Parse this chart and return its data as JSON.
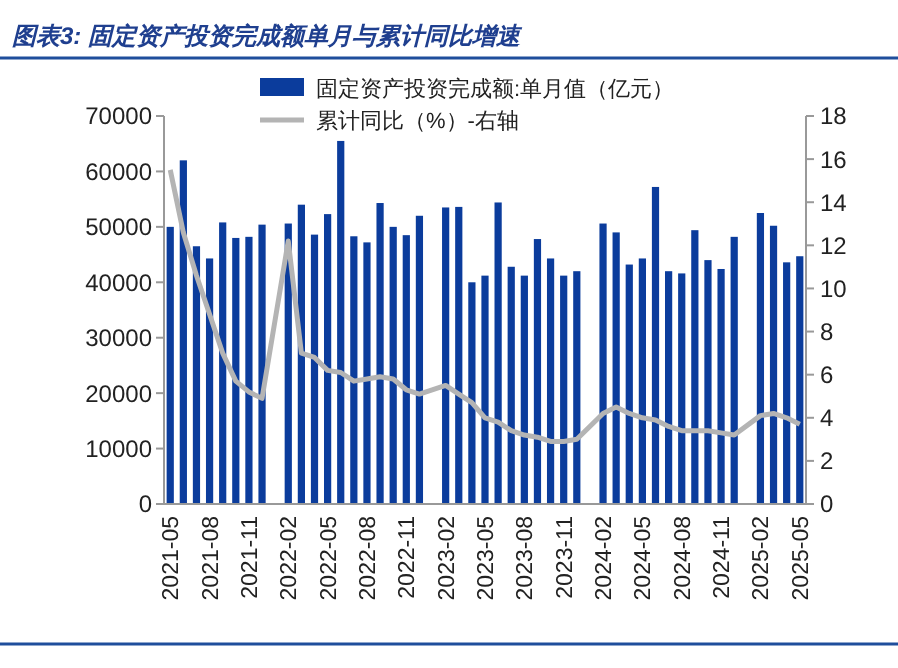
{
  "chart_data": {
    "type": "bar",
    "title": "图表3:  固定资产投资完成额单月与累计同比增速",
    "categories": [
      "2021-05",
      null,
      null,
      "2021-08",
      null,
      null,
      "2021-11",
      null,
      null,
      "2022-02",
      null,
      null,
      "2022-05",
      null,
      null,
      "2022-08",
      null,
      null,
      "2022-11",
      null,
      null,
      "2023-02",
      null,
      null,
      "2023-05",
      null,
      null,
      "2023-08",
      null,
      null,
      "2023-11",
      null,
      null,
      "2024-02",
      null,
      null,
      "2024-05",
      null,
      null,
      "2024-08",
      null,
      null,
      "2024-11",
      null,
      null,
      "2025-02",
      null,
      null,
      "2025-05"
    ],
    "series": [
      {
        "name": "固定资产投资完成额:单月值（亿元）",
        "color": "#0b3c9c",
        "values": [
          50000,
          62000,
          46500,
          44300,
          50800,
          48000,
          48200,
          50400,
          null,
          50600,
          54000,
          48600,
          52300,
          65500,
          48300,
          47200,
          54300,
          50000,
          48500,
          52000,
          null,
          53500,
          53600,
          40000,
          41200,
          54400,
          42800,
          41200,
          47800,
          44300,
          41200,
          42000,
          null,
          50600,
          49000,
          43200,
          44300,
          57200,
          42000,
          41600,
          49400,
          44000,
          42400,
          48200,
          null,
          52500,
          50200,
          43600,
          44700
        ]
      },
      {
        "name": "累计同比（%）-右轴",
        "type": "line",
        "axis": "y2",
        "color": "#b4b4b4",
        "values": [
          15.5,
          12.6,
          10.6,
          8.8,
          7.0,
          5.7,
          5.2,
          4.9,
          null,
          12.2,
          7.0,
          6.8,
          6.2,
          6.1,
          5.7,
          5.8,
          5.9,
          5.8,
          5.3,
          5.1,
          null,
          5.5,
          5.1,
          4.7,
          4.0,
          3.8,
          3.4,
          3.2,
          3.1,
          2.9,
          2.9,
          3.0,
          null,
          4.2,
          4.5,
          4.2,
          4.0,
          3.9,
          3.6,
          3.4,
          3.4,
          3.4,
          3.3,
          3.2,
          null,
          4.1,
          4.2,
          4.0,
          3.7
        ]
      }
    ],
    "ylim": [
      0,
      70000
    ],
    "yticks": [
      0,
      10000,
      20000,
      30000,
      40000,
      50000,
      60000,
      70000
    ],
    "y2lim": [
      0,
      18
    ],
    "y2ticks": [
      0,
      2,
      4,
      6,
      8,
      10,
      12,
      14,
      16,
      18
    ],
    "legend": "top"
  }
}
